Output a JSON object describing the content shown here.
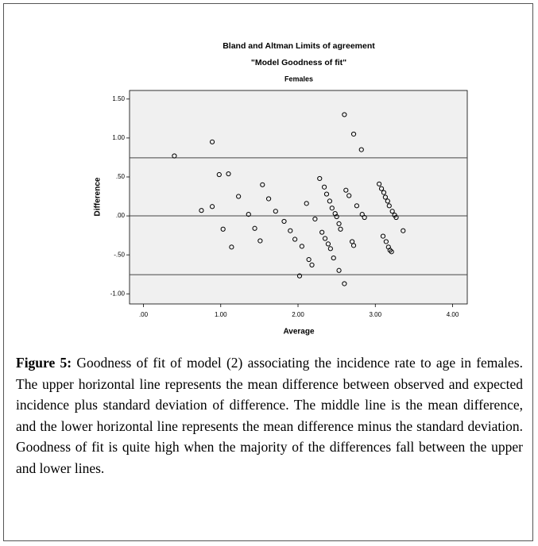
{
  "chart_data": {
    "type": "scatter",
    "title": "Bland and Altman Limits of agreement",
    "subtitle": "\"Model Goodness of fit\"",
    "panel": "Females",
    "xlabel": "Average",
    "ylabel": "Difference",
    "color": "#000000",
    "x": [
      0.4,
      0.75,
      0.98,
      0.89,
      0.89,
      1.03,
      1.1,
      1.14,
      1.23,
      1.36,
      1.44,
      1.51,
      1.54,
      1.62,
      1.71,
      1.82,
      1.9,
      1.96,
      2.02,
      2.05,
      2.11,
      2.14,
      2.18,
      2.22,
      2.28,
      2.31,
      2.34,
      2.35,
      2.37,
      2.39,
      2.41,
      2.42,
      2.44,
      2.46,
      2.48,
      2.5,
      2.53,
      2.55,
      2.53,
      2.6,
      2.6,
      2.72,
      2.82,
      2.62,
      2.66,
      2.7,
      2.72,
      2.76,
      2.83,
      2.86,
      3.05,
      3.08,
      3.11,
      3.13,
      3.16,
      3.18,
      3.1,
      3.14,
      3.17,
      3.19,
      3.21,
      3.22,
      3.25,
      3.27,
      3.36
    ],
    "values": [
      0.77,
      0.07,
      0.53,
      0.95,
      0.12,
      -0.17,
      0.54,
      -0.4,
      0.25,
      0.02,
      -0.16,
      -0.32,
      0.4,
      0.22,
      0.06,
      -0.07,
      -0.19,
      -0.3,
      -0.77,
      -0.39,
      0.16,
      -0.56,
      -0.63,
      -0.04,
      0.48,
      -0.21,
      0.37,
      -0.29,
      0.28,
      -0.36,
      0.19,
      -0.42,
      0.1,
      -0.54,
      0.03,
      -0.01,
      -0.1,
      -0.17,
      -0.7,
      -0.87,
      1.3,
      1.05,
      0.85,
      0.33,
      0.26,
      -0.33,
      -0.38,
      0.13,
      0.02,
      -0.02,
      0.41,
      0.35,
      0.3,
      0.24,
      0.19,
      0.13,
      -0.26,
      -0.33,
      -0.4,
      -0.44,
      -0.46,
      0.06,
      0.01,
      -0.02,
      -0.19
    ],
    "reference_lines": [
      0.745,
      0,
      -0.755
    ],
    "xlim": [
      -0.18,
      4.19
    ],
    "ylim": [
      -1.13,
      1.61
    ],
    "xticks": [
      {
        "value": 0,
        "label": ".00"
      },
      {
        "value": 1,
        "label": "1.00"
      },
      {
        "value": 2,
        "label": "2.00"
      },
      {
        "value": 3,
        "label": "3.00"
      },
      {
        "value": 4,
        "label": "4.00"
      }
    ],
    "yticks": [
      {
        "value": 1.5,
        "label": "1.50"
      },
      {
        "value": 1,
        "label": "1.00"
      },
      {
        "value": 0.5,
        "label": ".50"
      },
      {
        "value": 0,
        "label": ".00"
      },
      {
        "value": -0.5,
        "label": "-.50"
      },
      {
        "value": -1,
        "label": "-1.00"
      }
    ]
  },
  "caption": {
    "label": "Figure 5:",
    "text": " Goodness of fit of model (2) associating the incidence rate to age in females. The upper horizontal line represents the mean difference between observed and expected incidence plus standard deviation of difference. The middle line is the mean difference, and the lower horizontal line represents the mean difference minus the standard deviation. Goodness of fit is quite high when the majority of the differences fall between the upper and lower lines."
  }
}
